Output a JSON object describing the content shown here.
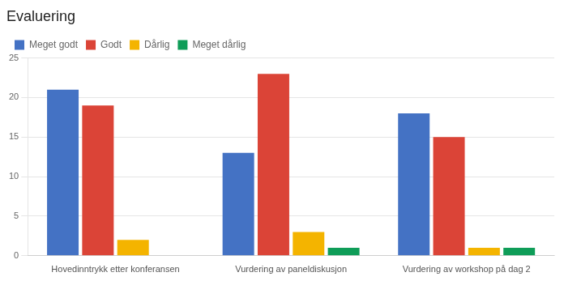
{
  "chart_data": {
    "type": "bar",
    "title": "Evaluering",
    "categories": [
      "Hovedinntrykk etter konferansen",
      "Vurdering av paneldiskusjon",
      "Vurdering av workshop på dag 2"
    ],
    "series": [
      {
        "name": "Meget godt",
        "color": "#4472C4",
        "values": [
          21,
          13,
          18
        ]
      },
      {
        "name": "Godt",
        "color": "#DB4437",
        "values": [
          19,
          23,
          15
        ]
      },
      {
        "name": "Dårlig",
        "color": "#F4B400",
        "values": [
          2,
          3,
          1
        ]
      },
      {
        "name": "Meget dårlig",
        "color": "#0F9D58",
        "values": [
          0,
          1,
          1
        ]
      }
    ],
    "ylim": [
      0,
      25
    ],
    "yticks": [
      0,
      5,
      10,
      15,
      20,
      25
    ],
    "grid": true,
    "legend": "upper left"
  }
}
